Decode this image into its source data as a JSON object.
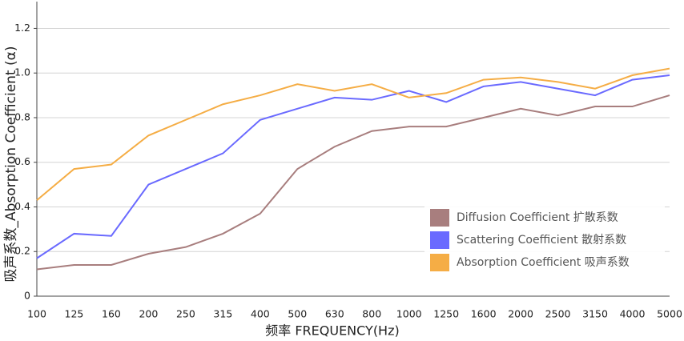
{
  "chart_data": {
    "type": "line",
    "y_label": "吸声系数_Absorption Coefficient (α)",
    "x_label": "频率 FREQUENCY(Hz)",
    "categories": [
      "100",
      "125",
      "160",
      "200",
      "250",
      "315",
      "400",
      "500",
      "630",
      "800",
      "1000",
      "1250",
      "1600",
      "2000",
      "2500",
      "3150",
      "4000",
      "5000"
    ],
    "series": [
      {
        "name": "Diffusion  Coefficient 扩散系数",
        "color": "#a87e7e",
        "values": [
          0.12,
          0.14,
          0.14,
          0.19,
          0.22,
          0.28,
          0.37,
          0.57,
          0.67,
          0.74,
          0.76,
          0.76,
          0.8,
          0.84,
          0.81,
          0.85,
          0.85,
          0.9
        ]
      },
      {
        "name": "Scattering  Coefficient 散射系数",
        "color": "#6a6aff",
        "values": [
          0.17,
          0.28,
          0.27,
          0.5,
          0.57,
          0.64,
          0.79,
          0.84,
          0.89,
          0.88,
          0.92,
          0.87,
          0.94,
          0.96,
          0.93,
          0.9,
          0.97,
          0.99
        ]
      },
      {
        "name": "Absorption  Coefficient 吸声系数",
        "color": "#f5ad45",
        "values": [
          0.43,
          0.57,
          0.59,
          0.72,
          0.79,
          0.86,
          0.9,
          0.95,
          0.92,
          0.95,
          0.89,
          0.91,
          0.97,
          0.98,
          0.96,
          0.93,
          0.99,
          1.02
        ]
      }
    ],
    "ylim": [
      0,
      1.32
    ],
    "yticks": [
      0,
      "0.2",
      "0.4",
      "0.6",
      "0.8",
      {
        "value": 1,
        "label": "1.0"
      },
      "1.2"
    ],
    "grid": true
  }
}
